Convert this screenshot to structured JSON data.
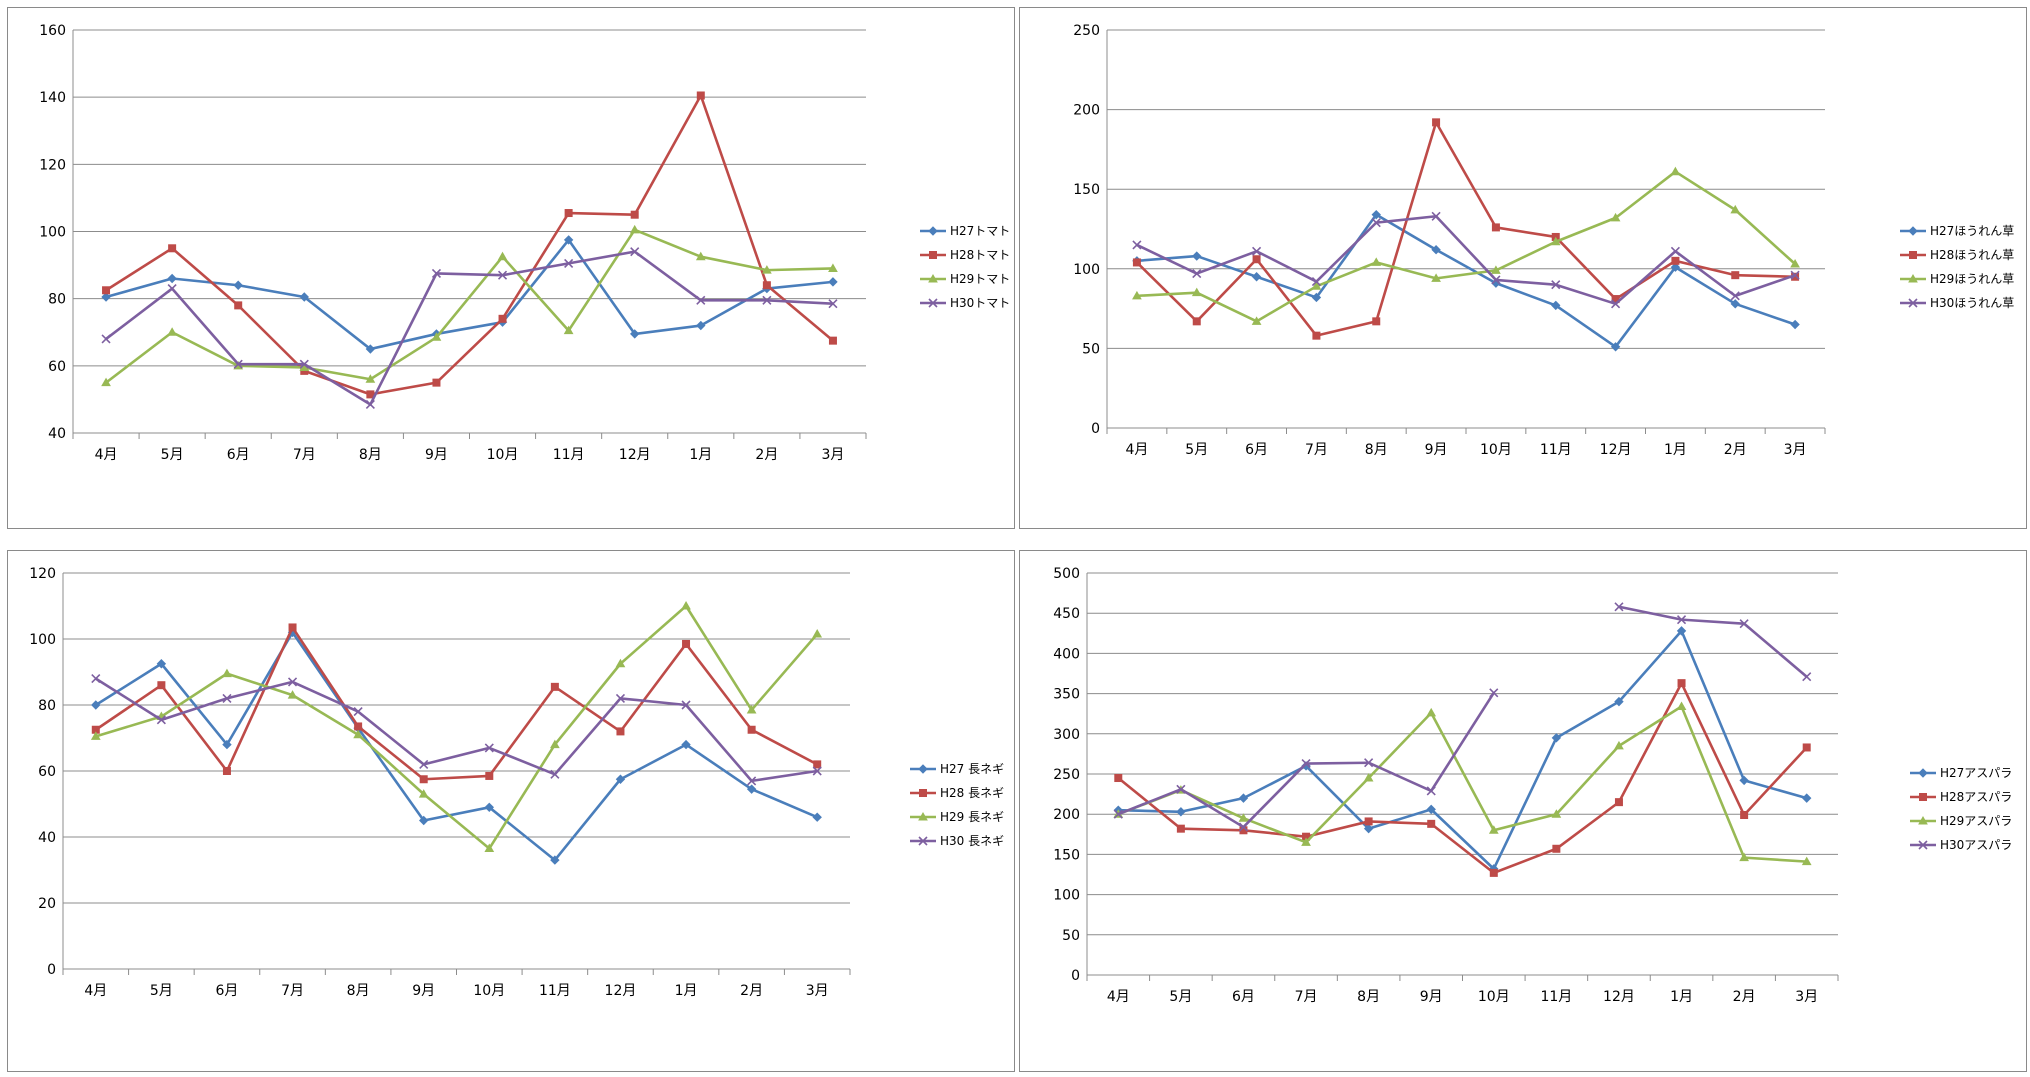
{
  "chart_data": [
    {
      "type": "line",
      "categories": [
        "4月",
        "5月",
        "6月",
        "7月",
        "8月",
        "9月",
        "10月",
        "11月",
        "12月",
        "1月",
        "2月",
        "3月"
      ],
      "ylim": [
        40,
        160
      ],
      "yticks": [
        40,
        60,
        80,
        100,
        120,
        140,
        160
      ],
      "grid": true,
      "legend": "right",
      "series": [
        {
          "name": "H27トマト",
          "color": "#4a7ebb",
          "marker": "diamond",
          "values": [
            80.5,
            86,
            84,
            80.5,
            65,
            69.5,
            73,
            97.5,
            69.5,
            72,
            83,
            85
          ]
        },
        {
          "name": "H28トマト",
          "color": "#be4b48",
          "marker": "square",
          "values": [
            82.5,
            95,
            78,
            58.5,
            51.5,
            55,
            74,
            105.5,
            105,
            140.5,
            84,
            67.5
          ]
        },
        {
          "name": "H29トマト",
          "color": "#98b954",
          "marker": "triangle",
          "values": [
            55,
            70,
            60,
            59.5,
            56,
            68.5,
            92.5,
            70.5,
            100.5,
            92.5,
            88.5,
            89
          ]
        },
        {
          "name": "H30トマト",
          "color": "#7d5fa0",
          "marker": "x",
          "values": [
            68,
            83,
            60.5,
            60.5,
            48.5,
            87.5,
            87,
            90.5,
            94,
            79.5,
            79.5,
            78.5
          ]
        }
      ]
    },
    {
      "type": "line",
      "categories": [
        "4月",
        "5月",
        "6月",
        "7月",
        "8月",
        "9月",
        "10月",
        "11月",
        "12月",
        "1月",
        "2月",
        "3月"
      ],
      "ylim": [
        0,
        250
      ],
      "yticks": [
        0,
        50,
        100,
        150,
        200,
        250
      ],
      "grid": true,
      "legend": "right",
      "series": [
        {
          "name": "H27ほうれん草",
          "color": "#4a7ebb",
          "marker": "diamond",
          "values": [
            105,
            108,
            95,
            82,
            134,
            112,
            91,
            77,
            51,
            101,
            78,
            65
          ]
        },
        {
          "name": "H28ほうれん草",
          "color": "#be4b48",
          "marker": "square",
          "values": [
            104,
            67,
            106,
            58,
            67,
            192,
            126,
            120,
            81,
            105,
            96,
            95
          ]
        },
        {
          "name": "H29ほうれん草",
          "color": "#98b954",
          "marker": "triangle",
          "values": [
            83,
            85,
            67,
            89,
            104,
            94,
            99,
            117,
            132,
            161,
            137,
            103
          ]
        },
        {
          "name": "H30ほうれん草",
          "color": "#7d5fa0",
          "marker": "x",
          "values": [
            115,
            97,
            111,
            92,
            129,
            133,
            93,
            90,
            78,
            111,
            83,
            96
          ]
        }
      ]
    },
    {
      "type": "line",
      "categories": [
        "4月",
        "5月",
        "6月",
        "7月",
        "8月",
        "9月",
        "10月",
        "11月",
        "12月",
        "1月",
        "2月",
        "3月"
      ],
      "ylim": [
        0,
        120
      ],
      "yticks": [
        0,
        20,
        40,
        60,
        80,
        100,
        120
      ],
      "grid": true,
      "legend": "right",
      "series": [
        {
          "name": "H27 長ネギ",
          "color": "#4a7ebb",
          "marker": "diamond",
          "values": [
            80,
            92.5,
            68,
            102,
            73,
            45,
            49,
            33,
            57.5,
            68,
            54.5,
            46
          ]
        },
        {
          "name": "H28 長ネギ",
          "color": "#be4b48",
          "marker": "square",
          "values": [
            72.5,
            86,
            60,
            103.5,
            73.5,
            57.5,
            58.5,
            85.5,
            72,
            98.5,
            72.5,
            62
          ]
        },
        {
          "name": "H29 長ネギ",
          "color": "#98b954",
          "marker": "triangle",
          "values": [
            70.5,
            76.5,
            89.5,
            83,
            71,
            53,
            36.5,
            68,
            92.5,
            110,
            78.5,
            101.5
          ]
        },
        {
          "name": "H30 長ネギ",
          "color": "#7d5fa0",
          "marker": "x",
          "values": [
            88,
            75.5,
            82,
            87,
            78,
            62,
            67,
            59,
            82,
            80,
            57,
            60
          ]
        }
      ]
    },
    {
      "type": "line",
      "categories": [
        "4月",
        "5月",
        "6月",
        "7月",
        "8月",
        "9月",
        "10月",
        "11月",
        "12月",
        "1月",
        "2月",
        "3月"
      ],
      "ylim": [
        0,
        500
      ],
      "yticks": [
        0,
        50,
        100,
        150,
        200,
        250,
        300,
        350,
        400,
        450,
        500
      ],
      "grid": true,
      "legend": "right",
      "series": [
        {
          "name": "H27アスパラ",
          "color": "#4a7ebb",
          "marker": "diamond",
          "values": [
            205,
            203,
            220,
            260,
            182,
            206,
            132,
            295,
            340,
            428,
            242,
            220
          ]
        },
        {
          "name": "H28アスパラ",
          "color": "#be4b48",
          "marker": "square",
          "values": [
            245,
            182,
            180,
            172,
            191,
            188,
            127,
            157,
            215,
            363,
            199,
            283
          ]
        },
        {
          "name": "H29アスパラ",
          "color": "#98b954",
          "marker": "triangle",
          "values": [
            200,
            230,
            195,
            165,
            245,
            326,
            180,
            200,
            285,
            334,
            146,
            141
          ]
        },
        {
          "name": "H30アスパラ",
          "color": "#7d5fa0",
          "marker": "x",
          "values": [
            200,
            231,
            184,
            263,
            264,
            229,
            351,
            null,
            458,
            442,
            437,
            371
          ]
        }
      ]
    }
  ]
}
